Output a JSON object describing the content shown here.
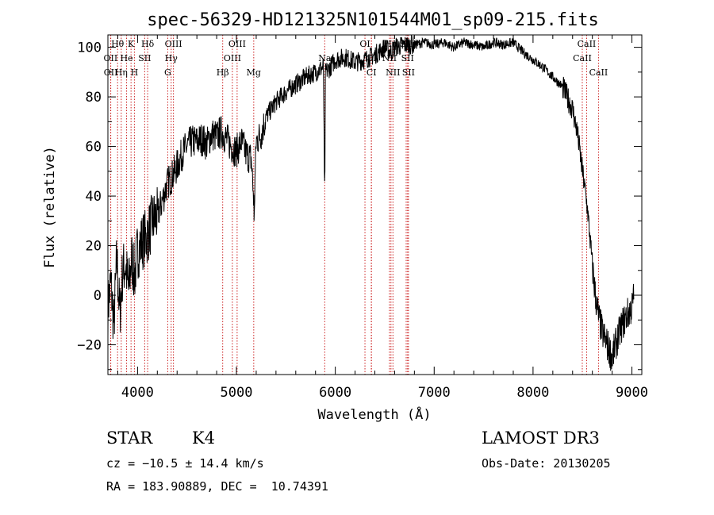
{
  "chart_data": {
    "type": "line",
    "title": "spec-56329-HD121325N101544M01_sp09-215.fits",
    "xlabel": "Wavelength (Å)",
    "ylabel": "Flux (relative)",
    "xlim": [
      3700,
      9100
    ],
    "ylim": [
      -32,
      105
    ],
    "xticks": [
      4000,
      5000,
      6000,
      7000,
      8000,
      9000
    ],
    "yticks": [
      -20,
      0,
      20,
      40,
      60,
      80,
      100
    ],
    "grid": false,
    "series": [
      {
        "name": "flux",
        "x": [
          3700,
          3730,
          3760,
          3790,
          3820,
          3850,
          3880,
          3910,
          3940,
          3970,
          4000,
          4050,
          4100,
          4150,
          4200,
          4250,
          4300,
          4350,
          4400,
          4450,
          4500,
          4550,
          4600,
          4650,
          4700,
          4750,
          4800,
          4850,
          4900,
          4950,
          5000,
          5050,
          5100,
          5150,
          5180,
          5200,
          5250,
          5300,
          5400,
          5500,
          5600,
          5700,
          5800,
          5880,
          5890,
          5900,
          5950,
          6000,
          6100,
          6200,
          6300,
          6400,
          6500,
          6563,
          6600,
          6700,
          6800,
          6900,
          7000,
          7100,
          7200,
          7300,
          7400,
          7500,
          7600,
          7700,
          7800,
          7900,
          8000,
          8100,
          8200,
          8300,
          8400,
          8450,
          8500,
          8550,
          8600,
          8630,
          8660,
          8700,
          8750,
          8800,
          8850,
          8900,
          8950,
          9000,
          9020
        ],
        "y": [
          -5,
          5,
          -12,
          15,
          -8,
          10,
          12,
          2,
          15,
          8,
          18,
          22,
          24,
          30,
          32,
          38,
          45,
          48,
          52,
          57,
          60,
          62,
          62,
          63,
          61,
          65,
          64,
          66,
          63,
          60,
          58,
          62,
          57,
          55,
          35,
          62,
          65,
          72,
          78,
          82,
          85,
          88,
          90,
          92,
          48,
          90,
          92,
          95,
          96,
          94,
          95,
          97,
          100,
          98,
          100,
          101,
          101,
          102,
          101,
          102,
          100,
          102,
          101,
          100,
          102,
          101,
          102,
          98,
          95,
          92,
          88,
          84,
          75,
          65,
          50,
          35,
          12,
          0,
          -8,
          -15,
          -20,
          -25,
          -18,
          -12,
          -8,
          -5,
          0
        ]
      }
    ],
    "emission_lines": [
      {
        "label": "Hθ",
        "x": 3798,
        "row": 0
      },
      {
        "label": "K",
        "x": 3934,
        "row": 0
      },
      {
        "label": "Hδ",
        "x": 4102,
        "row": 0
      },
      {
        "label": "OIII",
        "x": 4363,
        "row": 0
      },
      {
        "label": "OIII",
        "x": 5007,
        "row": 0
      },
      {
        "label": "OI",
        "x": 6300,
        "row": 0
      },
      {
        "label": "Hα",
        "x": 6563,
        "row": 0
      },
      {
        "label": "SII",
        "x": 6717,
        "row": 0
      },
      {
        "label": "CaII",
        "x": 8542,
        "row": 0
      },
      {
        "label": "OII",
        "x": 3727,
        "row": 1
      },
      {
        "label": "He",
        "x": 3889,
        "row": 1
      },
      {
        "label": "SII",
        "x": 4072,
        "row": 1
      },
      {
        "label": "Hγ",
        "x": 4340,
        "row": 1
      },
      {
        "label": "OIII",
        "x": 4959,
        "row": 1
      },
      {
        "label": "Na",
        "x": 5893,
        "row": 1
      },
      {
        "label": "OI",
        "x": 6364,
        "row": 1
      },
      {
        "label": "NII",
        "x": 6548,
        "row": 1
      },
      {
        "label": "SII",
        "x": 6731,
        "row": 1
      },
      {
        "label": "CaII",
        "x": 8498,
        "row": 1
      },
      {
        "label": "OII",
        "x": 3729,
        "row": 2
      },
      {
        "label": "Hη",
        "x": 3835,
        "row": 2
      },
      {
        "label": "H",
        "x": 3968,
        "row": 2
      },
      {
        "label": "G",
        "x": 4305,
        "row": 2
      },
      {
        "label": "Hβ",
        "x": 4861,
        "row": 2
      },
      {
        "label": "Mg",
        "x": 5175,
        "row": 2
      },
      {
        "label": "CI",
        "x": 6366,
        "row": 2
      },
      {
        "label": "NII",
        "x": 6583,
        "row": 2
      },
      {
        "label": "SII",
        "x": 6740,
        "row": 2
      },
      {
        "label": "CaII",
        "x": 8662,
        "row": 2
      }
    ]
  },
  "info": {
    "object_class": "STAR",
    "subclass": "K4",
    "survey": "LAMOST DR3",
    "cz": "cz = −10.5 ± 14.4 km/s",
    "obs_date": "Obs-Date: 20130205",
    "coords": "RA = 183.90889, DEC =  10.74391"
  },
  "colors": {
    "line_marker": "#cc2222",
    "spectrum": "#000000"
  }
}
